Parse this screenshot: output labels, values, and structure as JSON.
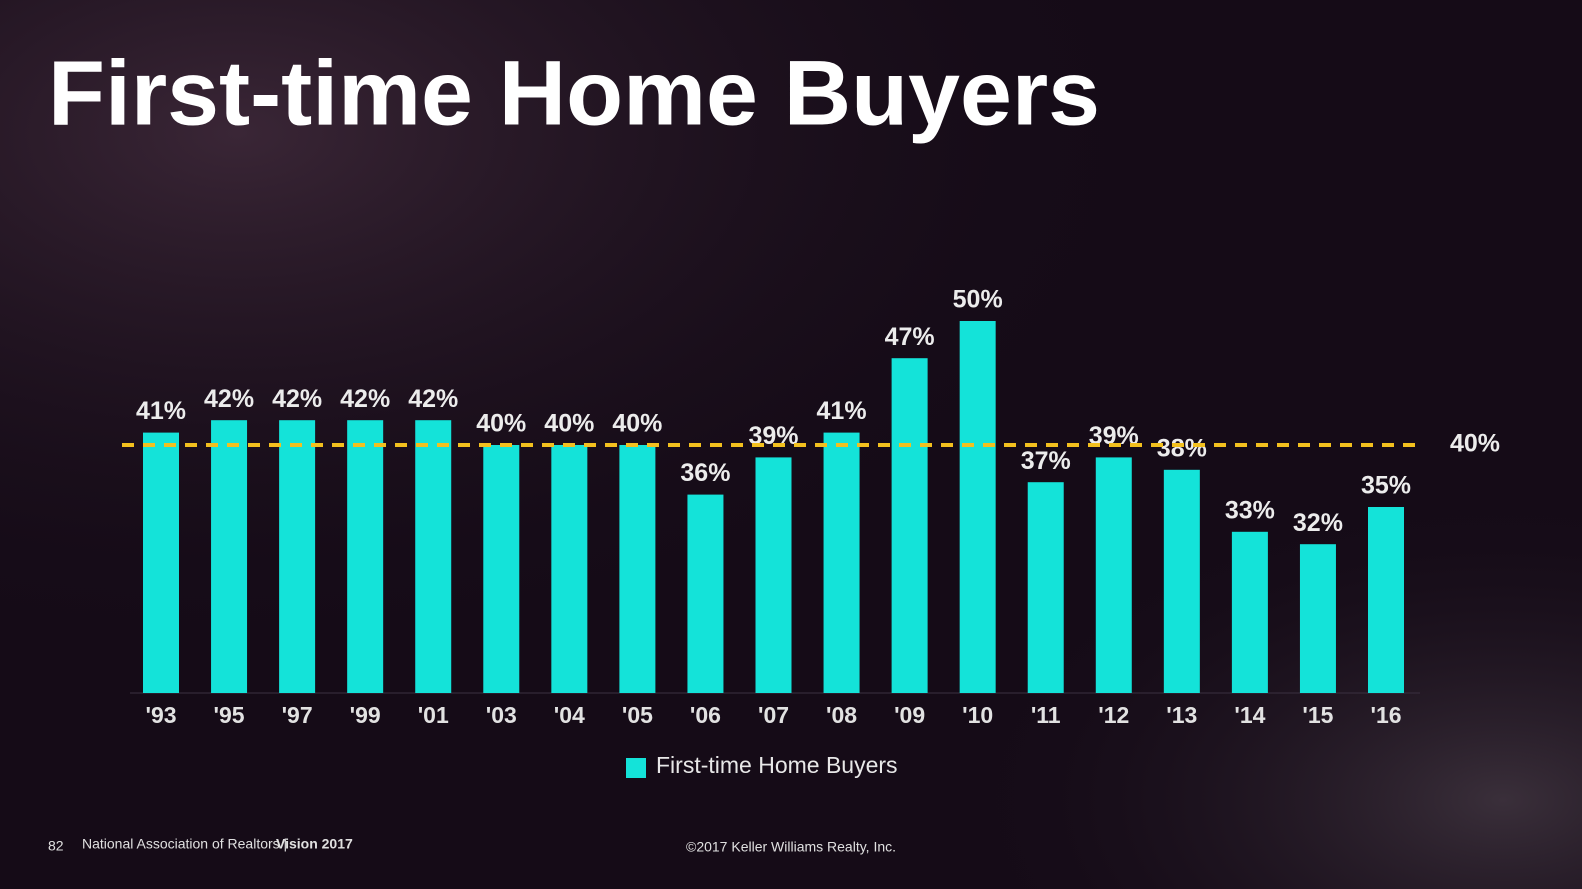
{
  "chart_data": {
    "type": "bar",
    "title": "First-time Home Buyers",
    "categories": [
      "'93",
      "'95",
      "'97",
      "'99",
      "'01",
      "'03",
      "'04",
      "'05",
      "'06",
      "'07",
      "'08",
      "'09",
      "'10",
      "'11",
      "'12",
      "'13",
      "'14",
      "'15",
      "'16"
    ],
    "series": [
      {
        "name": "First-time Home Buyers",
        "color": "#14e3d9",
        "values": [
          41,
          42,
          42,
          42,
          42,
          40,
          40,
          40,
          36,
          39,
          41,
          47,
          50,
          37,
          39,
          38,
          33,
          32,
          35
        ],
        "value_labels": [
          "41%",
          "42%",
          "42%",
          "42%",
          "42%",
          "40%",
          "40%",
          "40%",
          "36%",
          "39%",
          "41%",
          "47%",
          "50%",
          "37%",
          "39%",
          "38%",
          "33%",
          "32%",
          "35%"
        ]
      }
    ],
    "ylim": [
      20,
      50
    ],
    "reference_line": {
      "value": 40,
      "label": "40%",
      "color": "#f2c01e"
    }
  },
  "footer": {
    "page": "82",
    "source": "National Association of Realtors |",
    "event": "Vision 2017",
    "copyright": "©2017 Keller Williams Realty, Inc."
  }
}
